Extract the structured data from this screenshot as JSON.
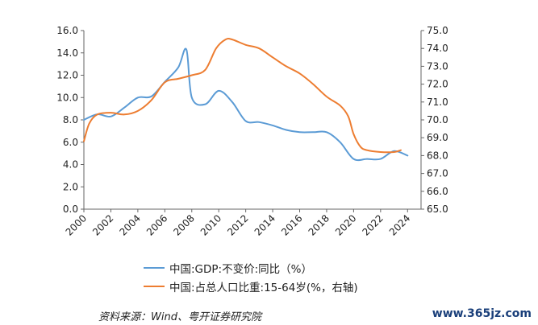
{
  "chart_data": {
    "type": "line",
    "title": "",
    "xlabel": "",
    "ylabel": "",
    "x_ticks": [
      "2000",
      "2002",
      "2004",
      "2006",
      "2008",
      "2010",
      "2012",
      "2014",
      "2016",
      "2018",
      "2020",
      "2022",
      "2024"
    ],
    "xlim": [
      2000,
      2025
    ],
    "ylim_left": [
      0,
      16
    ],
    "ylim_right": [
      65,
      75
    ],
    "y_left_ticks": [
      "0.0",
      "2.0",
      "4.0",
      "6.0",
      "8.0",
      "10.0",
      "12.0",
      "14.0",
      "16.0"
    ],
    "y_right_ticks": [
      "65.0",
      "66.0",
      "67.0",
      "68.0",
      "69.0",
      "70.0",
      "71.0",
      "72.0",
      "73.0",
      "74.0",
      "75.0"
    ],
    "grid": false,
    "legend_position": "bottom",
    "series": [
      {
        "name": "中国:GDP:不变价:同比（%）",
        "axis": "left",
        "color": "#5b9bd5",
        "x": [
          2000,
          2001,
          2002,
          2003,
          2004,
          2005,
          2006,
          2007,
          2007.6,
          2008,
          2009,
          2010,
          2011,
          2012,
          2013,
          2014,
          2015,
          2016,
          2017,
          2018,
          2019,
          2020,
          2021,
          2022,
          2023,
          2024
        ],
        "values": [
          8.0,
          8.5,
          8.3,
          9.1,
          10.0,
          10.1,
          11.4,
          12.7,
          14.3,
          10.0,
          9.4,
          10.6,
          9.6,
          7.9,
          7.8,
          7.5,
          7.1,
          6.9,
          6.9,
          6.9,
          6.0,
          4.5,
          4.5,
          4.5,
          5.2,
          4.8
        ]
      },
      {
        "name": "中国:占总人口比重:15-64岁(%，右轴)",
        "axis": "right",
        "color": "#ed7d31",
        "x": [
          2000,
          2000.4,
          2001,
          2002,
          2003,
          2004,
          2005,
          2006,
          2007,
          2008,
          2009,
          2009.8,
          2010.5,
          2011,
          2012,
          2013,
          2014,
          2015,
          2016,
          2017,
          2018,
          2019,
          2019.6,
          2020,
          2020.5,
          2021,
          2022,
          2023,
          2023.5
        ],
        "values": [
          68.8,
          69.8,
          70.3,
          70.4,
          70.3,
          70.5,
          71.1,
          72.1,
          72.3,
          72.5,
          72.8,
          74.0,
          74.5,
          74.5,
          74.2,
          74.0,
          73.5,
          73.0,
          72.6,
          72.0,
          71.3,
          70.8,
          70.2,
          69.2,
          68.5,
          68.3,
          68.2,
          68.2,
          68.3
        ]
      }
    ]
  },
  "source_text": "资料来源：Wind、粤开证券研究院",
  "watermark_text": "www.365jz.com"
}
